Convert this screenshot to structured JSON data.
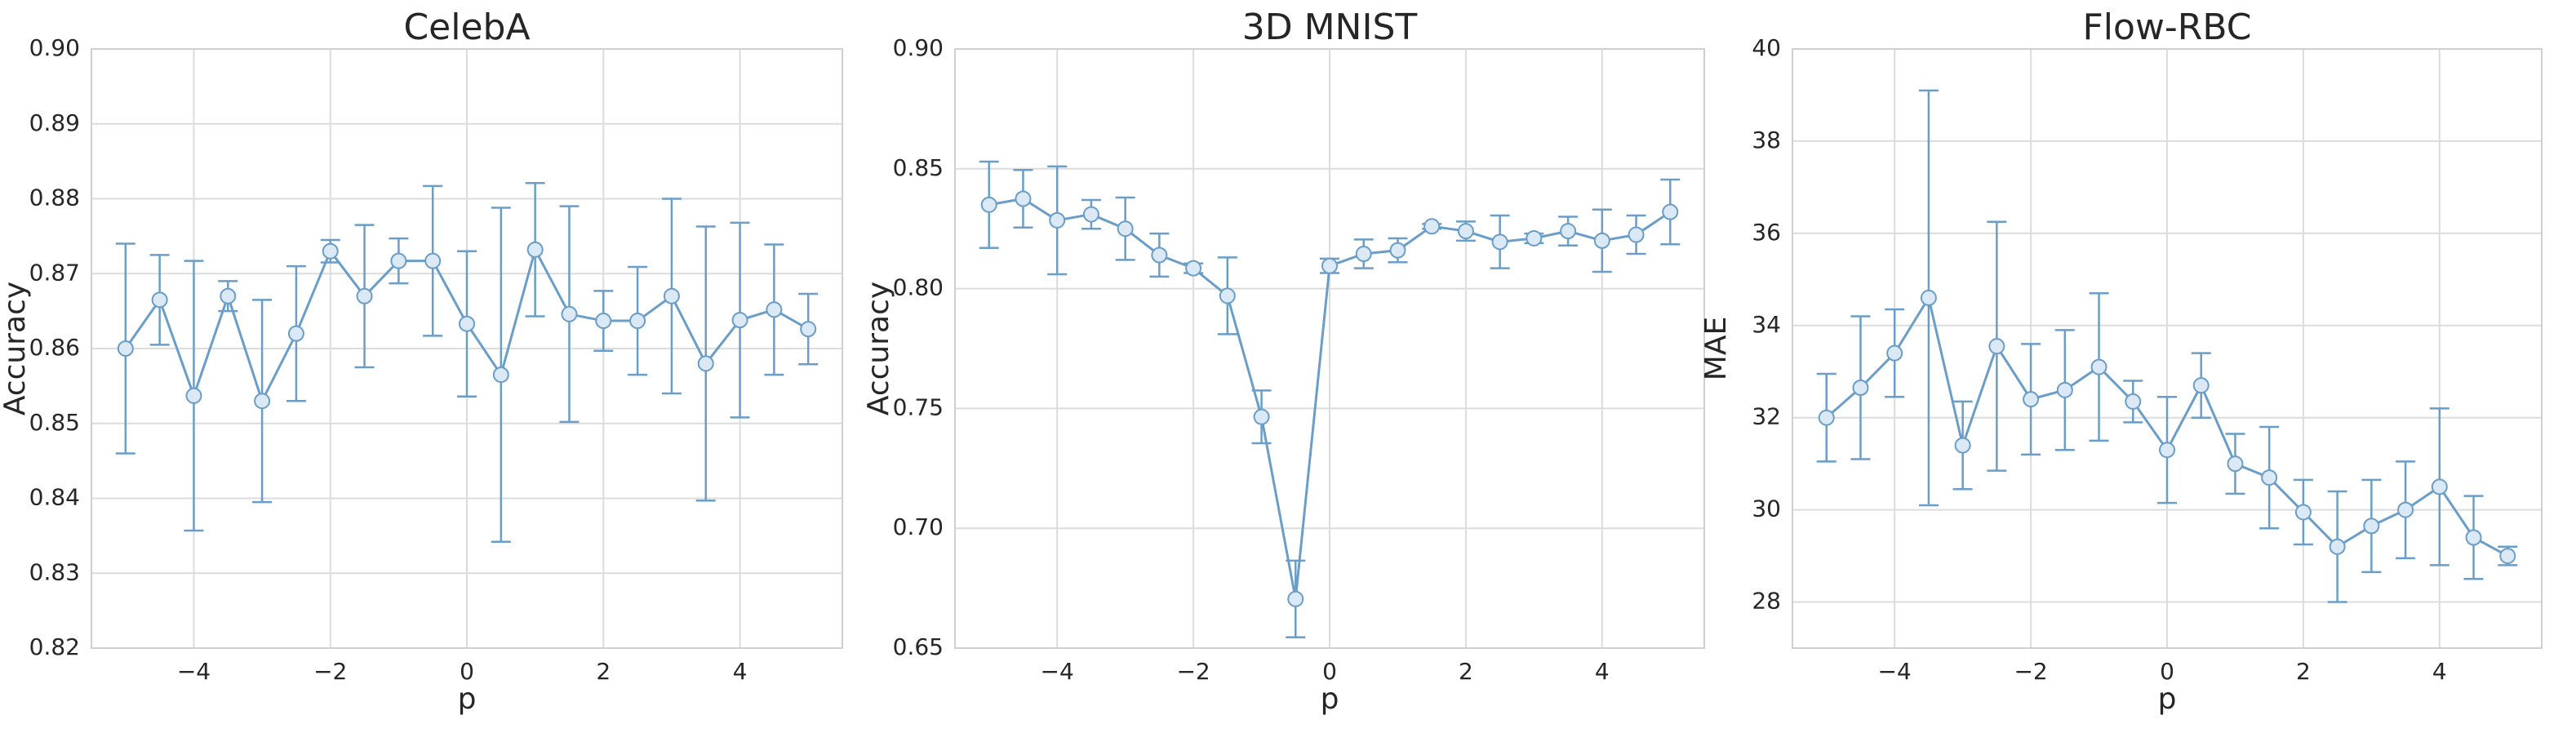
{
  "chart_data": [
    {
      "type": "line",
      "title": "CelebA",
      "x_label": "p",
      "y_label": "Accuracy",
      "color": "#6a9ec8",
      "grid": true,
      "x": [
        -5,
        -4.5,
        -4,
        -3.5,
        -3,
        -2.5,
        -2,
        -1.5,
        -1,
        -0.5,
        0,
        0.5,
        1,
        1.5,
        2,
        2.5,
        3,
        3.5,
        4,
        4.5,
        5
      ],
      "values": [
        0.86,
        0.8665,
        0.8537,
        0.867,
        0.853,
        0.862,
        0.873,
        0.867,
        0.8717,
        0.8717,
        0.8633,
        0.8565,
        0.8732,
        0.8646,
        0.8637,
        0.8637,
        0.867,
        0.858,
        0.8638,
        0.8652,
        0.8626
      ],
      "errors": [
        0.014,
        0.006,
        0.018,
        0.002,
        0.0135,
        0.009,
        0.0015,
        0.0095,
        0.003,
        0.01,
        0.0097,
        0.0223,
        0.0089,
        0.0144,
        0.004,
        0.0072,
        0.013,
        0.0183,
        0.013,
        0.0087,
        0.0047
      ],
      "xlim": [
        -5.5,
        5.5
      ],
      "ylim": [
        0.82,
        0.9
      ],
      "xticks": [
        {
          "value": -4,
          "label": "−4"
        },
        {
          "value": -2,
          "label": "−2"
        },
        0,
        2,
        4
      ],
      "yticks": [
        {
          "value": 0.82,
          "label": "0.82"
        },
        {
          "value": 0.83,
          "label": "0.83"
        },
        {
          "value": 0.84,
          "label": "0.84"
        },
        {
          "value": 0.85,
          "label": "0.85"
        },
        {
          "value": 0.86,
          "label": "0.86"
        },
        {
          "value": 0.87,
          "label": "0.87"
        },
        {
          "value": 0.88,
          "label": "0.88"
        },
        {
          "value": 0.89,
          "label": "0.89"
        },
        {
          "value": 0.9,
          "label": "0.90"
        }
      ]
    },
    {
      "type": "line",
      "title": "3D MNIST",
      "x_label": "p",
      "y_label": "Accuracy",
      "color": "#6a9ec8",
      "grid": true,
      "x": [
        -5,
        -4.5,
        -4,
        -3.5,
        -3,
        -2.5,
        -2,
        -1.5,
        -1,
        -0.5,
        0,
        0.5,
        1,
        1.5,
        2,
        2.5,
        3,
        3.5,
        4,
        4.5,
        5
      ],
      "values": [
        0.835,
        0.8375,
        0.8285,
        0.831,
        0.825,
        0.814,
        0.8085,
        0.797,
        0.7465,
        0.6705,
        0.8095,
        0.8145,
        0.816,
        0.826,
        0.824,
        0.8195,
        0.821,
        0.824,
        0.82,
        0.8225,
        0.832
      ],
      "errors": [
        0.018,
        0.012,
        0.0225,
        0.006,
        0.013,
        0.009,
        0.002,
        0.016,
        0.011,
        0.016,
        0.003,
        0.006,
        0.005,
        0.001,
        0.004,
        0.011,
        0.002,
        0.006,
        0.013,
        0.008,
        0.0135
      ],
      "xlim": [
        -5.5,
        5.5
      ],
      "ylim": [
        0.65,
        0.9
      ],
      "xticks": [
        {
          "value": -4,
          "label": "−4"
        },
        {
          "value": -2,
          "label": "−2"
        },
        0,
        2,
        4
      ],
      "yticks": [
        {
          "value": 0.65,
          "label": "0.65"
        },
        {
          "value": 0.7,
          "label": "0.70"
        },
        {
          "value": 0.75,
          "label": "0.75"
        },
        {
          "value": 0.8,
          "label": "0.80"
        },
        {
          "value": 0.85,
          "label": "0.85"
        },
        {
          "value": 0.9,
          "label": "0.90"
        }
      ]
    },
    {
      "type": "line",
      "title": "Flow-RBC",
      "x_label": "p",
      "y_label": "MAE",
      "color": "#6a9ec8",
      "grid": true,
      "x": [
        -5,
        -4.5,
        -4,
        -3.5,
        -3,
        -2.5,
        -2,
        -1.5,
        -1,
        -0.5,
        0,
        0.5,
        1,
        1.5,
        2,
        2.5,
        3,
        3.5,
        4,
        4.5,
        5
      ],
      "values": [
        32.0,
        32.65,
        33.4,
        34.6,
        31.4,
        33.55,
        32.4,
        32.6,
        33.1,
        32.35,
        31.3,
        32.7,
        31.0,
        30.7,
        29.95,
        29.2,
        29.65,
        30.0,
        30.5,
        29.4,
        29.0
      ],
      "errors": [
        0.95,
        1.55,
        0.95,
        4.5,
        0.95,
        2.7,
        1.2,
        1.3,
        1.6,
        0.45,
        1.15,
        0.7,
        0.65,
        1.1,
        0.7,
        1.2,
        1.0,
        1.05,
        1.7,
        0.9,
        0.2
      ],
      "xlim": [
        -5.5,
        5.5
      ],
      "ylim": [
        27,
        40
      ],
      "xticks": [
        {
          "value": -4,
          "label": "−4"
        },
        {
          "value": -2,
          "label": "−2"
        },
        0,
        2,
        4
      ],
      "yticks": [
        28,
        30,
        32,
        34,
        36,
        38,
        40
      ]
    }
  ]
}
